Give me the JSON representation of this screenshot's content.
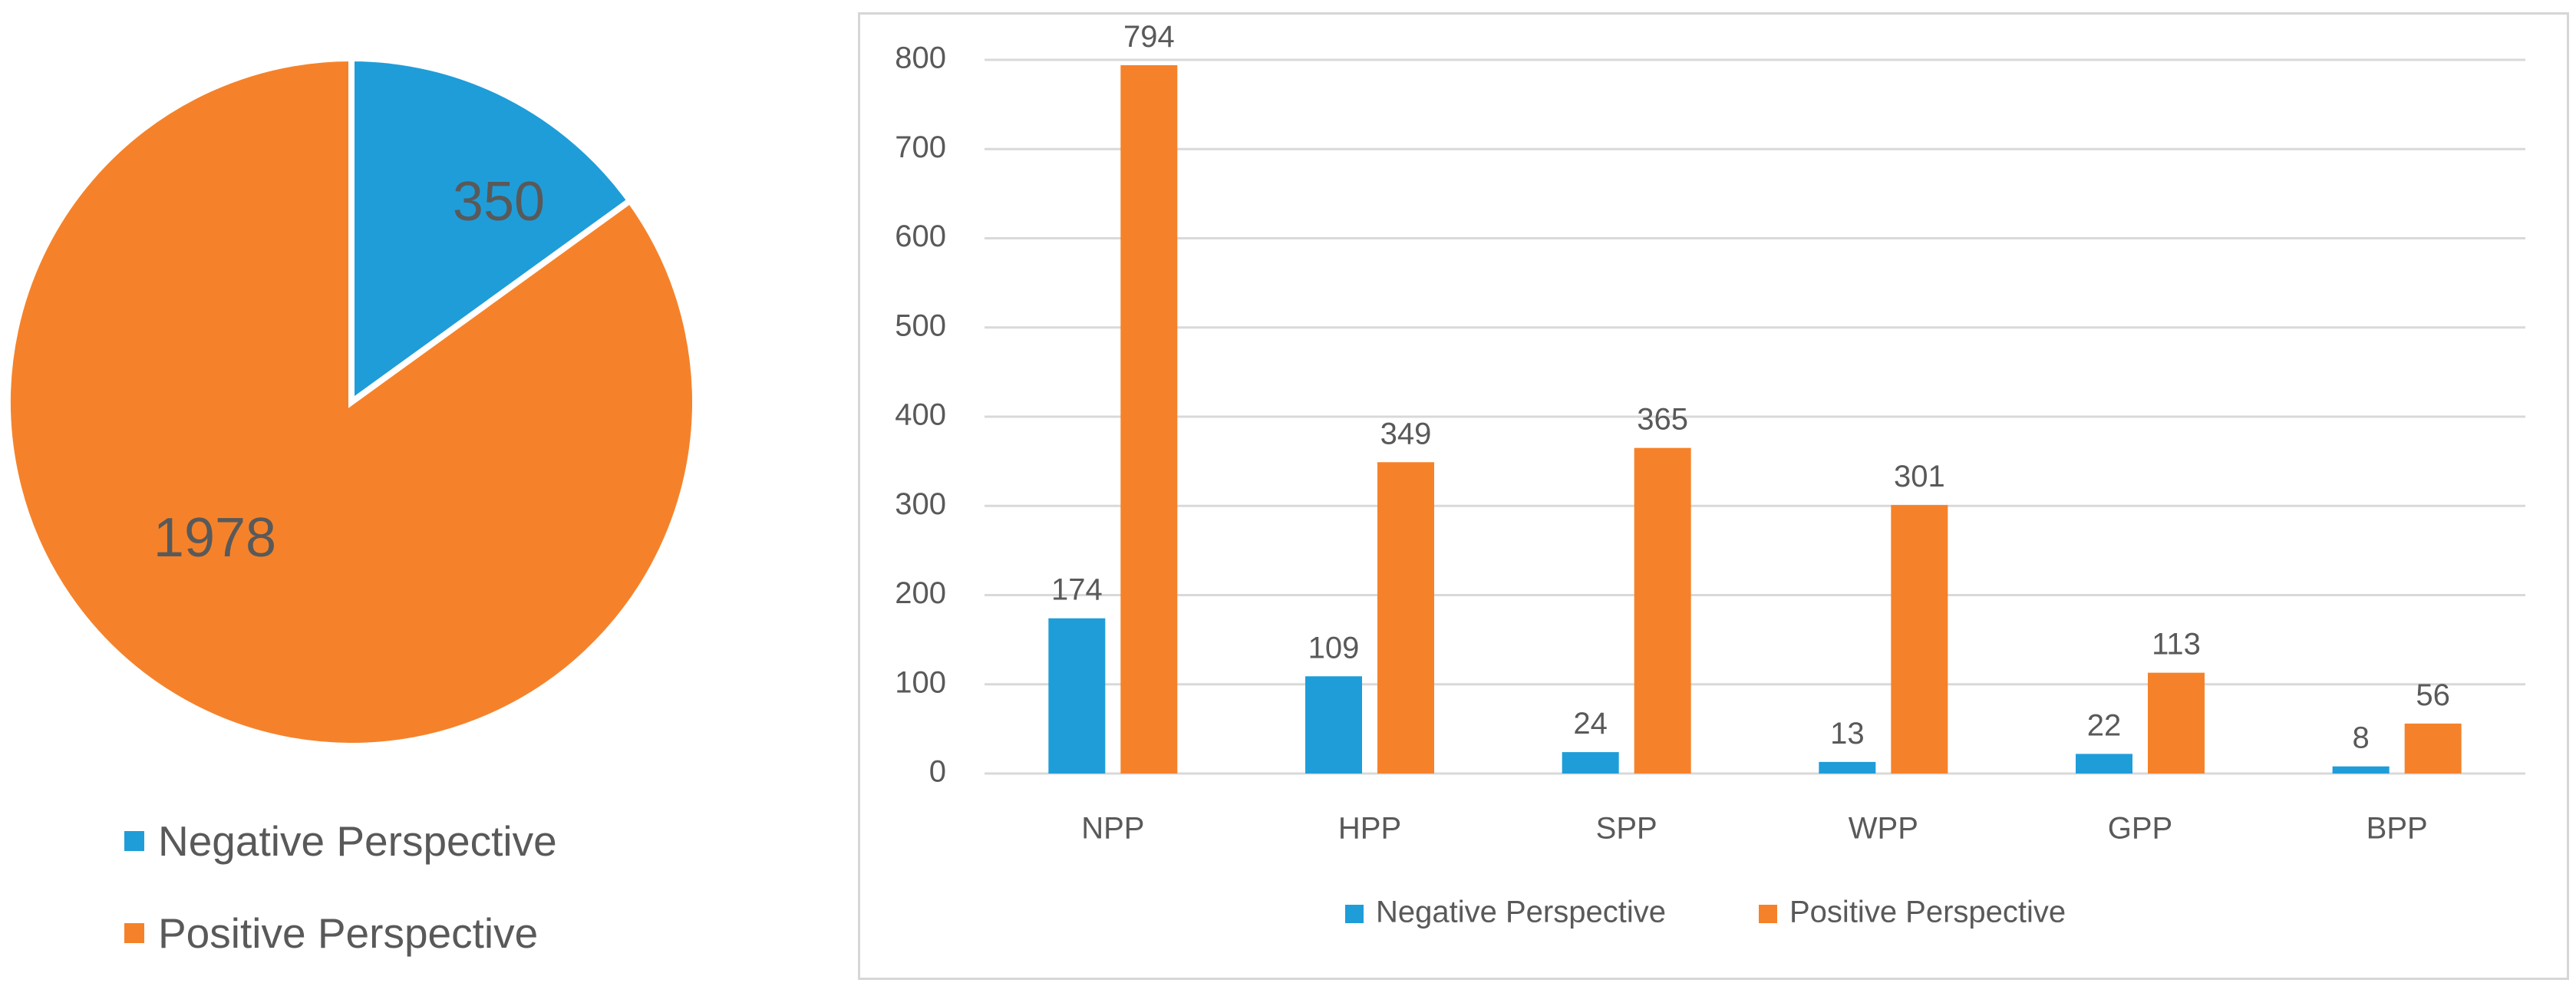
{
  "colors": {
    "negative": "#1f9dd9",
    "positive": "#f5822a",
    "text": "#595959",
    "grid": "#d9d9d9"
  },
  "chart_data": [
    {
      "type": "pie",
      "title": "",
      "categories": [
        "Negative Perspective",
        "Positive Perspective"
      ],
      "values": [
        350,
        1978
      ],
      "legend_position": "bottom"
    },
    {
      "type": "bar",
      "title": "",
      "xlabel": "",
      "ylabel": "",
      "categories": [
        "NPP",
        "HPP",
        "SPP",
        "WPP",
        "GPP",
        "BPP"
      ],
      "series": [
        {
          "name": "Negative Perspective",
          "values": [
            174,
            109,
            24,
            13,
            22,
            8
          ]
        },
        {
          "name": "Positive Perspective",
          "values": [
            794,
            349,
            365,
            301,
            113,
            56
          ]
        }
      ],
      "ylim": [
        0,
        800
      ],
      "yticks": [
        0,
        100,
        200,
        300,
        400,
        500,
        600,
        700,
        800
      ],
      "grid": true,
      "legend_position": "bottom"
    }
  ]
}
